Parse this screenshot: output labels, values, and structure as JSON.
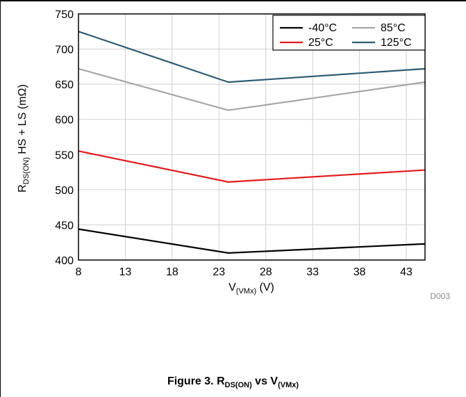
{
  "chart_data": {
    "type": "line",
    "x": [
      8,
      24,
      45
    ],
    "xlim": [
      8,
      45
    ],
    "xticks": [
      8,
      13,
      18,
      23,
      28,
      33,
      38,
      43
    ],
    "ylim": [
      400,
      750
    ],
    "yticks": [
      400,
      450,
      500,
      550,
      600,
      650,
      700,
      750
    ],
    "xlabel": {
      "main": "V",
      "sub": "(VMx)",
      "unit": " (V)"
    },
    "ylabel": {
      "main": "R",
      "sub": "DS(ON)",
      "rest": " HS + LS (mΩ)"
    },
    "grid": true,
    "legend_position": "top-right",
    "series": [
      {
        "name": "-40°C",
        "color": "#000000",
        "values": [
          444,
          410,
          423
        ]
      },
      {
        "name": "85°C",
        "color": "#a6a6a6",
        "values": [
          672,
          613,
          653
        ]
      },
      {
        "name": "25°C",
        "color": "#e31a1c",
        "values": [
          555,
          511,
          528
        ]
      },
      {
        "name": "125°C",
        "color": "#2e5b74",
        "values": [
          725,
          653,
          672
        ]
      }
    ],
    "code_label": "D003"
  },
  "caption": {
    "prefix": "Figure 3. R",
    "sub1": "DS(ON)",
    "mid": " vs V",
    "sub2": "(VMx)"
  }
}
